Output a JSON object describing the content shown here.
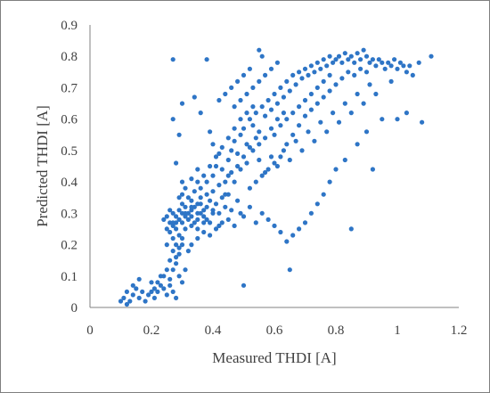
{
  "chart_data": {
    "type": "scatter",
    "title": "",
    "xlabel": "Measured THDI  [A]",
    "ylabel": "Predicted THDI [A]",
    "xlim": [
      0,
      1.2
    ],
    "ylim": [
      0,
      0.9
    ],
    "x_ticks": [
      "0",
      "0.2",
      "0.4",
      "0.6",
      "0.8",
      "1",
      "1.2"
    ],
    "y_ticks": [
      "0",
      "0.1",
      "0.2",
      "0.3",
      "0.4",
      "0.5",
      "0.6",
      "0.7",
      "0.8",
      "0.9"
    ],
    "grid": false,
    "legend": "none",
    "marker_color": "#2e75c6",
    "series": [
      {
        "points": [
          [
            0.1,
            0.02
          ],
          [
            0.11,
            0.03
          ],
          [
            0.12,
            0.05
          ],
          [
            0.13,
            0.02
          ],
          [
            0.14,
            0.04
          ],
          [
            0.15,
            0.06
          ],
          [
            0.16,
            0.03
          ],
          [
            0.17,
            0.05
          ],
          [
            0.18,
            0.02
          ],
          [
            0.12,
            0.01
          ],
          [
            0.14,
            0.07
          ],
          [
            0.16,
            0.09
          ],
          [
            0.19,
            0.04
          ],
          [
            0.2,
            0.05
          ],
          [
            0.21,
            0.06
          ],
          [
            0.22,
            0.08
          ],
          [
            0.23,
            0.07
          ],
          [
            0.24,
            0.1
          ],
          [
            0.25,
            0.12
          ],
          [
            0.26,
            0.15
          ],
          [
            0.27,
            0.18
          ],
          [
            0.27,
            0.22
          ],
          [
            0.28,
            0.2
          ],
          [
            0.28,
            0.25
          ],
          [
            0.29,
            0.17
          ],
          [
            0.29,
            0.23
          ],
          [
            0.3,
            0.27
          ],
          [
            0.3,
            0.2
          ],
          [
            0.28,
            0.14
          ],
          [
            0.29,
            0.1
          ],
          [
            0.3,
            0.08
          ],
          [
            0.31,
            0.12
          ],
          [
            0.27,
            0.05
          ],
          [
            0.28,
            0.03
          ],
          [
            0.26,
            0.09
          ],
          [
            0.25,
            0.2
          ],
          [
            0.26,
            0.24
          ],
          [
            0.27,
            0.27
          ],
          [
            0.28,
            0.29
          ],
          [
            0.29,
            0.31
          ],
          [
            0.3,
            0.33
          ],
          [
            0.31,
            0.3
          ],
          [
            0.32,
            0.28
          ],
          [
            0.33,
            0.31
          ],
          [
            0.34,
            0.32
          ],
          [
            0.35,
            0.3
          ],
          [
            0.36,
            0.33
          ],
          [
            0.37,
            0.29
          ],
          [
            0.38,
            0.32
          ],
          [
            0.39,
            0.34
          ],
          [
            0.4,
            0.31
          ],
          [
            0.41,
            0.33
          ],
          [
            0.42,
            0.3
          ],
          [
            0.43,
            0.35
          ],
          [
            0.44,
            0.32
          ],
          [
            0.45,
            0.36
          ],
          [
            0.3,
            0.36
          ],
          [
            0.32,
            0.35
          ],
          [
            0.34,
            0.37
          ],
          [
            0.36,
            0.38
          ],
          [
            0.38,
            0.4
          ],
          [
            0.4,
            0.42
          ],
          [
            0.33,
            0.26
          ],
          [
            0.35,
            0.25
          ],
          [
            0.37,
            0.27
          ],
          [
            0.31,
            0.32
          ],
          [
            0.33,
            0.34
          ],
          [
            0.35,
            0.28
          ],
          [
            0.27,
            0.3
          ],
          [
            0.26,
            0.31
          ],
          [
            0.25,
            0.29
          ],
          [
            0.24,
            0.28
          ],
          [
            0.29,
            0.35
          ],
          [
            0.31,
            0.38
          ],
          [
            0.33,
            0.41
          ],
          [
            0.35,
            0.44
          ],
          [
            0.3,
            0.4
          ],
          [
            0.28,
            0.46
          ],
          [
            0.29,
            0.55
          ],
          [
            0.27,
            0.6
          ],
          [
            0.3,
            0.65
          ],
          [
            0.27,
            0.79
          ],
          [
            0.38,
            0.79
          ],
          [
            0.34,
            0.67
          ],
          [
            0.36,
            0.62
          ],
          [
            0.39,
            0.56
          ],
          [
            0.4,
            0.52
          ],
          [
            0.42,
            0.49
          ],
          [
            0.41,
            0.45
          ],
          [
            0.43,
            0.44
          ],
          [
            0.45,
            0.47
          ],
          [
            0.46,
            0.5
          ],
          [
            0.47,
            0.53
          ],
          [
            0.48,
            0.49
          ],
          [
            0.49,
            0.55
          ],
          [
            0.5,
            0.57
          ],
          [
            0.51,
            0.52
          ],
          [
            0.52,
            0.6
          ],
          [
            0.53,
            0.58
          ],
          [
            0.54,
            0.62
          ],
          [
            0.55,
            0.56
          ],
          [
            0.56,
            0.64
          ],
          [
            0.57,
            0.61
          ],
          [
            0.58,
            0.66
          ],
          [
            0.59,
            0.63
          ],
          [
            0.6,
            0.68
          ],
          [
            0.61,
            0.65
          ],
          [
            0.62,
            0.7
          ],
          [
            0.63,
            0.67
          ],
          [
            0.64,
            0.72
          ],
          [
            0.65,
            0.69
          ],
          [
            0.66,
            0.74
          ],
          [
            0.67,
            0.71
          ],
          [
            0.68,
            0.75
          ],
          [
            0.69,
            0.73
          ],
          [
            0.7,
            0.76
          ],
          [
            0.71,
            0.74
          ],
          [
            0.72,
            0.77
          ],
          [
            0.73,
            0.75
          ],
          [
            0.74,
            0.78
          ],
          [
            0.75,
            0.76
          ],
          [
            0.76,
            0.79
          ],
          [
            0.77,
            0.77
          ],
          [
            0.78,
            0.8
          ],
          [
            0.79,
            0.78
          ],
          [
            0.8,
            0.79
          ],
          [
            0.81,
            0.8
          ],
          [
            0.82,
            0.78
          ],
          [
            0.83,
            0.81
          ],
          [
            0.84,
            0.79
          ],
          [
            0.85,
            0.8
          ],
          [
            0.86,
            0.78
          ],
          [
            0.87,
            0.81
          ],
          [
            0.88,
            0.79
          ],
          [
            0.89,
            0.82
          ],
          [
            0.9,
            0.8
          ],
          [
            0.91,
            0.78
          ],
          [
            0.92,
            0.79
          ],
          [
            0.93,
            0.77
          ],
          [
            0.94,
            0.79
          ],
          [
            0.95,
            0.78
          ],
          [
            0.96,
            0.76
          ],
          [
            0.97,
            0.78
          ],
          [
            0.98,
            0.77
          ],
          [
            0.99,
            0.79
          ],
          [
            1.0,
            0.76
          ],
          [
            1.01,
            0.78
          ],
          [
            1.02,
            0.77
          ],
          [
            1.03,
            0.75
          ],
          [
            1.04,
            0.77
          ],
          [
            1.05,
            0.74
          ],
          [
            1.07,
            0.78
          ],
          [
            1.11,
            0.8
          ],
          [
            1.08,
            0.59
          ],
          [
            1.03,
            0.62
          ],
          [
            1.0,
            0.6
          ],
          [
            0.98,
            0.72
          ],
          [
            0.95,
            0.6
          ],
          [
            0.9,
            0.56
          ],
          [
            0.92,
            0.44
          ],
          [
            0.85,
            0.25
          ],
          [
            0.87,
            0.52
          ],
          [
            0.83,
            0.47
          ],
          [
            0.8,
            0.44
          ],
          [
            0.78,
            0.4
          ],
          [
            0.76,
            0.36
          ],
          [
            0.74,
            0.33
          ],
          [
            0.72,
            0.3
          ],
          [
            0.7,
            0.27
          ],
          [
            0.68,
            0.25
          ],
          [
            0.66,
            0.23
          ],
          [
            0.64,
            0.21
          ],
          [
            0.62,
            0.24
          ],
          [
            0.6,
            0.26
          ],
          [
            0.58,
            0.28
          ],
          [
            0.56,
            0.3
          ],
          [
            0.54,
            0.27
          ],
          [
            0.52,
            0.32
          ],
          [
            0.5,
            0.29
          ],
          [
            0.48,
            0.34
          ],
          [
            0.46,
            0.31
          ],
          [
            0.44,
            0.36
          ],
          [
            0.42,
            0.26
          ],
          [
            0.65,
            0.12
          ],
          [
            0.5,
            0.07
          ],
          [
            0.55,
            0.47
          ],
          [
            0.57,
            0.43
          ],
          [
            0.59,
            0.48
          ],
          [
            0.61,
            0.45
          ],
          [
            0.63,
            0.5
          ],
          [
            0.65,
            0.47
          ],
          [
            0.67,
            0.53
          ],
          [
            0.69,
            0.5
          ],
          [
            0.71,
            0.56
          ],
          [
            0.73,
            0.53
          ],
          [
            0.75,
            0.59
          ],
          [
            0.77,
            0.56
          ],
          [
            0.79,
            0.62
          ],
          [
            0.81,
            0.59
          ],
          [
            0.83,
            0.65
          ],
          [
            0.85,
            0.62
          ],
          [
            0.87,
            0.68
          ],
          [
            0.89,
            0.65
          ],
          [
            0.91,
            0.71
          ],
          [
            0.93,
            0.68
          ],
          [
            0.6,
            0.55
          ],
          [
            0.62,
            0.58
          ],
          [
            0.64,
            0.6
          ],
          [
            0.66,
            0.62
          ],
          [
            0.68,
            0.64
          ],
          [
            0.7,
            0.66
          ],
          [
            0.72,
            0.68
          ],
          [
            0.74,
            0.7
          ],
          [
            0.76,
            0.72
          ],
          [
            0.78,
            0.74
          ],
          [
            0.56,
            0.8
          ],
          [
            0.55,
            0.82
          ],
          [
            0.52,
            0.76
          ],
          [
            0.5,
            0.74
          ],
          [
            0.48,
            0.72
          ],
          [
            0.46,
            0.7
          ],
          [
            0.44,
            0.68
          ],
          [
            0.42,
            0.66
          ],
          [
            0.47,
            0.64
          ],
          [
            0.49,
            0.66
          ],
          [
            0.51,
            0.68
          ],
          [
            0.53,
            0.7
          ],
          [
            0.55,
            0.72
          ],
          [
            0.57,
            0.74
          ],
          [
            0.59,
            0.76
          ],
          [
            0.61,
            0.78
          ],
          [
            0.45,
            0.42
          ],
          [
            0.47,
            0.4
          ],
          [
            0.49,
            0.44
          ],
          [
            0.51,
            0.46
          ],
          [
            0.53,
            0.5
          ],
          [
            0.55,
            0.52
          ],
          [
            0.57,
            0.54
          ],
          [
            0.59,
            0.57
          ],
          [
            0.61,
            0.6
          ],
          [
            0.63,
            0.62
          ],
          [
            0.52,
            0.38
          ],
          [
            0.54,
            0.4
          ],
          [
            0.56,
            0.42
          ],
          [
            0.58,
            0.44
          ],
          [
            0.6,
            0.46
          ],
          [
            0.62,
            0.48
          ],
          [
            0.64,
            0.52
          ],
          [
            0.66,
            0.55
          ],
          [
            0.68,
            0.58
          ],
          [
            0.7,
            0.61
          ],
          [
            0.72,
            0.63
          ],
          [
            0.74,
            0.65
          ],
          [
            0.76,
            0.67
          ],
          [
            0.78,
            0.69
          ],
          [
            0.8,
            0.71
          ],
          [
            0.82,
            0.73
          ],
          [
            0.84,
            0.75
          ],
          [
            0.86,
            0.74
          ],
          [
            0.88,
            0.76
          ],
          [
            0.9,
            0.75
          ],
          [
            0.35,
            0.4
          ],
          [
            0.37,
            0.42
          ],
          [
            0.39,
            0.45
          ],
          [
            0.41,
            0.48
          ],
          [
            0.43,
            0.51
          ],
          [
            0.45,
            0.54
          ],
          [
            0.47,
            0.57
          ],
          [
            0.49,
            0.6
          ],
          [
            0.51,
            0.62
          ],
          [
            0.53,
            0.64
          ],
          [
            0.36,
            0.35
          ],
          [
            0.38,
            0.36
          ],
          [
            0.4,
            0.37
          ],
          [
            0.42,
            0.39
          ],
          [
            0.44,
            0.4
          ],
          [
            0.46,
            0.43
          ],
          [
            0.48,
            0.45
          ],
          [
            0.5,
            0.48
          ],
          [
            0.52,
            0.51
          ],
          [
            0.54,
            0.54
          ],
          [
            0.32,
            0.18
          ],
          [
            0.33,
            0.2
          ],
          [
            0.35,
            0.22
          ],
          [
            0.37,
            0.24
          ],
          [
            0.39,
            0.23
          ],
          [
            0.41,
            0.25
          ],
          [
            0.43,
            0.27
          ],
          [
            0.45,
            0.28
          ],
          [
            0.47,
            0.26
          ],
          [
            0.49,
            0.3
          ],
          [
            0.23,
            0.1
          ],
          [
            0.22,
            0.05
          ],
          [
            0.21,
            0.03
          ],
          [
            0.2,
            0.08
          ],
          [
            0.24,
            0.06
          ],
          [
            0.25,
            0.04
          ],
          [
            0.26,
            0.07
          ],
          [
            0.27,
            0.12
          ],
          [
            0.28,
            0.16
          ],
          [
            0.29,
            0.19
          ],
          [
            0.3,
            0.22
          ],
          [
            0.31,
            0.25
          ],
          [
            0.32,
            0.3
          ],
          [
            0.33,
            0.29
          ],
          [
            0.34,
            0.27
          ],
          [
            0.36,
            0.3
          ],
          [
            0.38,
            0.28
          ],
          [
            0.4,
            0.3
          ],
          [
            0.39,
            0.27
          ],
          [
            0.37,
            0.31
          ],
          [
            0.35,
            0.33
          ],
          [
            0.33,
            0.32
          ],
          [
            0.31,
            0.29
          ],
          [
            0.3,
            0.3
          ],
          [
            0.29,
            0.28
          ],
          [
            0.28,
            0.27
          ],
          [
            0.27,
            0.26
          ],
          [
            0.26,
            0.27
          ],
          [
            0.25,
            0.25
          ]
        ]
      }
    ]
  }
}
